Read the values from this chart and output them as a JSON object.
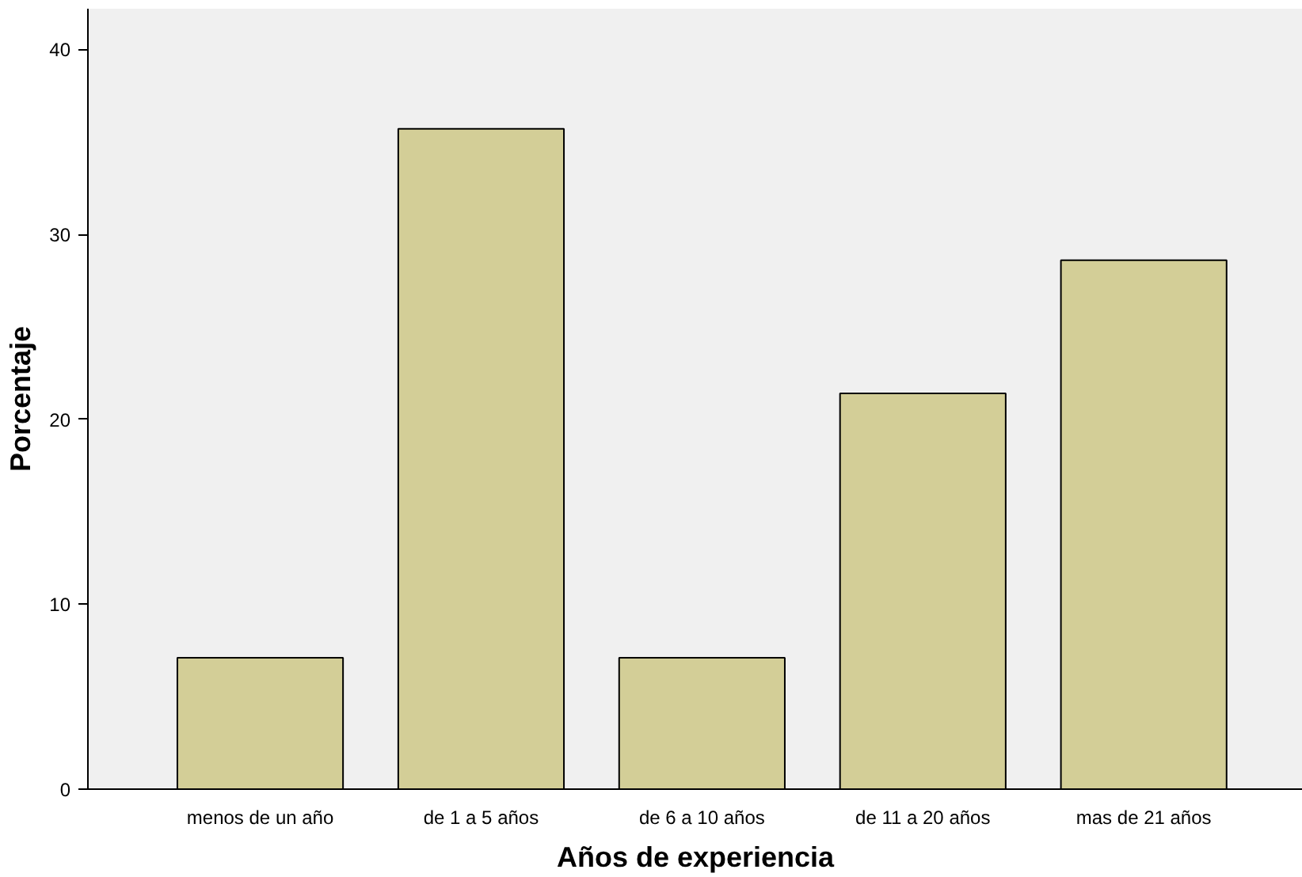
{
  "chart_data": {
    "type": "bar",
    "xlabel": "Años de experiencia",
    "ylabel": "Porcentaje",
    "categories": [
      "menos de un año",
      "de 1 a 5 años",
      "de 6 a 10 años",
      "de 11 a 20 años",
      "mas de 21 años"
    ],
    "values": [
      7.1,
      35.7,
      7.1,
      21.4,
      28.6
    ],
    "color": "#d3ce97",
    "ylim": [
      0,
      42.2
    ],
    "yticks": [
      0,
      10,
      20,
      30,
      40
    ],
    "grid": false
  }
}
